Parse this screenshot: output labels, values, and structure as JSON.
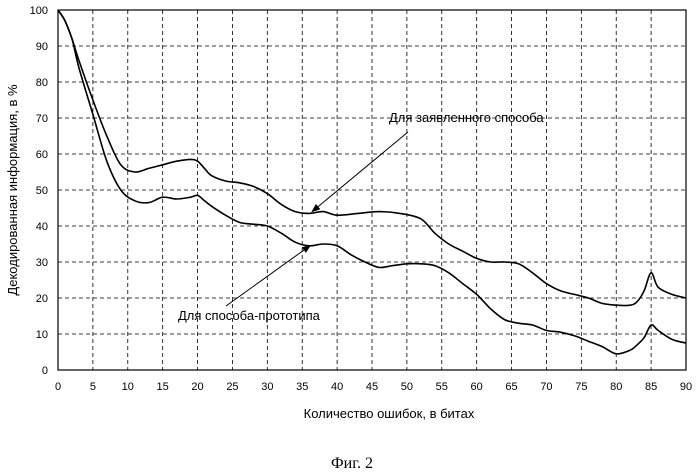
{
  "chart_data": {
    "type": "line",
    "title": "",
    "xlabel": "Количество ошибок, в битах",
    "ylabel": "Декодированная информация, в %",
    "xlim": [
      0,
      90
    ],
    "ylim": [
      0,
      100
    ],
    "grid": true,
    "x_ticks": [
      "0",
      "5",
      "10",
      "15",
      "20",
      "25",
      "30",
      "35",
      "40",
      "45",
      "50",
      "55",
      "60",
      "65",
      "70",
      "75",
      "80",
      "85",
      "90"
    ],
    "y_ticks": [
      "0",
      "10",
      "20",
      "30",
      "40",
      "50",
      "60",
      "70",
      "80",
      "90",
      "100"
    ],
    "series": [
      {
        "name": "Для заявленного способа",
        "x": [
          0,
          1,
          2,
          3,
          5,
          7,
          9,
          11,
          13,
          15,
          17,
          19,
          20,
          21,
          22,
          24,
          26,
          28,
          30,
          32,
          34,
          36,
          38,
          40,
          43,
          46,
          49,
          52,
          54,
          56,
          58,
          60,
          62,
          64,
          66,
          68,
          70,
          72,
          74,
          76,
          78,
          80,
          82,
          83,
          84,
          85,
          86,
          88,
          90
        ],
        "y": [
          100,
          97,
          92,
          86,
          75,
          65,
          57,
          55,
          56,
          57,
          58,
          58.5,
          58,
          56,
          54,
          52.5,
          52,
          51,
          49,
          46,
          44,
          43.5,
          44,
          43,
          43.5,
          44,
          43.5,
          42,
          38,
          35,
          33,
          31,
          30,
          30,
          29.5,
          27,
          24,
          22,
          21,
          20,
          18.5,
          18,
          18,
          19,
          22,
          27,
          23,
          21,
          20
        ]
      },
      {
        "name": "Для способа-прототипа",
        "x": [
          0,
          1,
          2,
          3,
          5,
          7,
          9,
          11,
          13,
          15,
          17,
          19,
          20,
          21,
          22,
          24,
          26,
          28,
          30,
          32,
          34,
          36,
          38,
          40,
          42,
          44,
          46,
          48,
          50,
          52,
          54,
          56,
          58,
          60,
          62,
          64,
          66,
          68,
          70,
          72,
          74,
          76,
          78,
          80,
          82,
          83,
          84,
          85,
          86,
          88,
          90
        ],
        "y": [
          100,
          97,
          92,
          84,
          71,
          58,
          50,
          47,
          46.5,
          48,
          47.5,
          48,
          48.5,
          47,
          45.5,
          43,
          41,
          40.5,
          40,
          38,
          35.5,
          34.5,
          35,
          34.5,
          32,
          30,
          28.5,
          29,
          29.5,
          29.5,
          29,
          27,
          24,
          21,
          17,
          14,
          13,
          12.5,
          11,
          10.5,
          9.5,
          8,
          6.5,
          4.5,
          5.5,
          7,
          9,
          12.5,
          11,
          8.5,
          7.5
        ]
      }
    ],
    "annotations": [
      {
        "text": "Для заявленного способа",
        "points_to": {
          "series": "Для заявленного способа",
          "x": 36,
          "y": 43.5
        }
      },
      {
        "text": "Для способа-прототипа",
        "points_to": {
          "series": "Для способа-прототипа",
          "x": 36,
          "y": 34.5
        }
      }
    ]
  },
  "caption": "Фиг. 2"
}
